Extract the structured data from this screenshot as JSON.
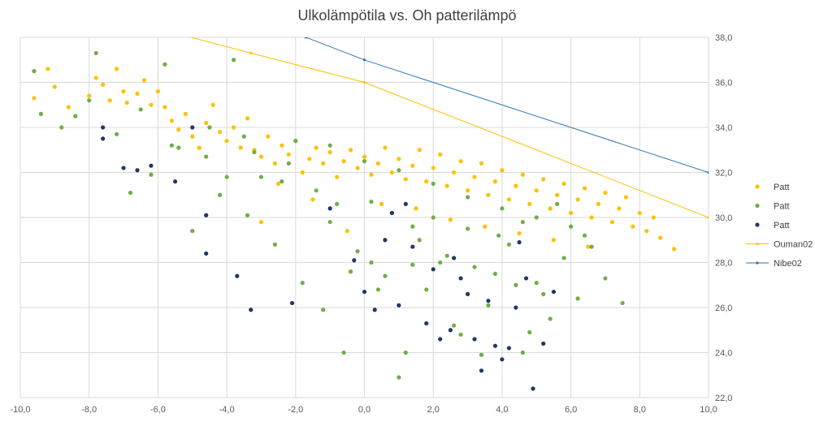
{
  "chart_data": {
    "type": "scatter",
    "title": "Ulkolämpötila vs. Oh patterilämpö",
    "xlim": [
      -10,
      10
    ],
    "ylim": [
      22,
      38
    ],
    "x_ticks": [
      "-10,0",
      "-8,0",
      "-6,0",
      "-4,0",
      "-2,0",
      "0,0",
      "2,0",
      "4,0",
      "6,0",
      "8,0",
      "10,0"
    ],
    "y_ticks": [
      "22,0",
      "24,0",
      "26,0",
      "28,0",
      "30,0",
      "32,0",
      "34,0",
      "36,0",
      "38,0"
    ],
    "grid": true,
    "legend_position": "right",
    "series": [
      {
        "name": "Patt",
        "kind": "scatter",
        "color": "#ffc000",
        "points": [
          [
            -9.6,
            35.3
          ],
          [
            -9.2,
            36.6
          ],
          [
            -9.0,
            35.8
          ],
          [
            -8.6,
            34.9
          ],
          [
            -8.0,
            35.4
          ],
          [
            -7.8,
            36.2
          ],
          [
            -7.6,
            35.9
          ],
          [
            -7.4,
            35.2
          ],
          [
            -7.2,
            36.6
          ],
          [
            -7.0,
            35.6
          ],
          [
            -6.9,
            35.1
          ],
          [
            -6.6,
            35.5
          ],
          [
            -6.4,
            36.1
          ],
          [
            -6.2,
            35.0
          ],
          [
            -6.0,
            35.6
          ],
          [
            -5.8,
            34.9
          ],
          [
            -5.6,
            34.3
          ],
          [
            -5.4,
            33.9
          ],
          [
            -5.2,
            34.6
          ],
          [
            -5.0,
            33.6
          ],
          [
            -4.8,
            33.1
          ],
          [
            -4.6,
            34.2
          ],
          [
            -4.4,
            35.0
          ],
          [
            -4.2,
            33.8
          ],
          [
            -4.0,
            33.4
          ],
          [
            -3.8,
            34.0
          ],
          [
            -3.6,
            33.1
          ],
          [
            -3.4,
            34.4
          ],
          [
            -3.2,
            33.0
          ],
          [
            -3.0,
            32.7
          ],
          [
            -2.8,
            33.6
          ],
          [
            -2.6,
            32.4
          ],
          [
            -2.4,
            33.2
          ],
          [
            -2.2,
            32.8
          ],
          [
            -2.0,
            33.4
          ],
          [
            -1.8,
            32.0
          ],
          [
            -1.6,
            32.6
          ],
          [
            -1.4,
            33.1
          ],
          [
            -1.2,
            32.4
          ],
          [
            -1.0,
            32.9
          ],
          [
            -0.8,
            31.8
          ],
          [
            -0.6,
            32.5
          ],
          [
            -0.4,
            33.0
          ],
          [
            -0.2,
            32.2
          ],
          [
            0.0,
            32.7
          ],
          [
            0.2,
            31.9
          ],
          [
            0.4,
            32.4
          ],
          [
            0.6,
            33.1
          ],
          [
            0.8,
            32.0
          ],
          [
            1.0,
            32.6
          ],
          [
            1.2,
            31.7
          ],
          [
            1.4,
            32.3
          ],
          [
            1.6,
            33.0
          ],
          [
            1.8,
            31.6
          ],
          [
            2.0,
            32.2
          ],
          [
            2.2,
            32.8
          ],
          [
            2.4,
            31.4
          ],
          [
            2.6,
            32.0
          ],
          [
            2.8,
            32.5
          ],
          [
            3.0,
            31.2
          ],
          [
            3.2,
            31.8
          ],
          [
            3.4,
            32.4
          ],
          [
            3.6,
            31.0
          ],
          [
            3.8,
            31.6
          ],
          [
            4.0,
            32.1
          ],
          [
            4.2,
            30.8
          ],
          [
            4.4,
            31.4
          ],
          [
            4.6,
            31.9
          ],
          [
            4.8,
            30.6
          ],
          [
            5.0,
            31.2
          ],
          [
            5.2,
            31.7
          ],
          [
            5.4,
            30.4
          ],
          [
            5.6,
            31.0
          ],
          [
            5.8,
            31.5
          ],
          [
            6.0,
            30.2
          ],
          [
            6.2,
            30.8
          ],
          [
            6.4,
            31.3
          ],
          [
            6.6,
            30.0
          ],
          [
            6.8,
            30.6
          ],
          [
            7.0,
            31.1
          ],
          [
            7.2,
            29.8
          ],
          [
            7.4,
            30.4
          ],
          [
            7.6,
            30.9
          ],
          [
            7.8,
            29.6
          ],
          [
            8.0,
            30.2
          ],
          [
            8.2,
            29.4
          ],
          [
            8.4,
            30.0
          ],
          [
            8.6,
            29.1
          ],
          [
            9.0,
            28.6
          ],
          [
            -0.5,
            29.4
          ],
          [
            -1.5,
            30.8
          ],
          [
            -3.0,
            29.8
          ],
          [
            -2.5,
            31.5
          ],
          [
            0.5,
            30.6
          ],
          [
            1.5,
            30.4
          ],
          [
            2.5,
            29.9
          ],
          [
            3.5,
            29.6
          ],
          [
            4.5,
            29.3
          ],
          [
            5.5,
            29.0
          ],
          [
            6.5,
            28.7
          ]
        ]
      },
      {
        "name": "Patt",
        "kind": "scatter",
        "color": "#70ad47",
        "points": [
          [
            -9.6,
            36.5
          ],
          [
            -9.4,
            34.6
          ],
          [
            -8.8,
            34.0
          ],
          [
            -8.4,
            34.5
          ],
          [
            -7.8,
            37.3
          ],
          [
            -7.2,
            33.7
          ],
          [
            -6.8,
            31.1
          ],
          [
            -6.2,
            31.9
          ],
          [
            -5.8,
            36.8
          ],
          [
            -5.4,
            33.1
          ],
          [
            -5.0,
            29.4
          ],
          [
            -4.6,
            32.7
          ],
          [
            -4.2,
            31.0
          ],
          [
            -3.8,
            37.0
          ],
          [
            -3.4,
            30.1
          ],
          [
            -3.0,
            31.8
          ],
          [
            -2.6,
            28.8
          ],
          [
            -2.2,
            32.4
          ],
          [
            -1.8,
            27.1
          ],
          [
            -1.4,
            31.2
          ],
          [
            -1.0,
            29.8
          ],
          [
            -0.6,
            24.0
          ],
          [
            -0.2,
            28.5
          ],
          [
            0.2,
            30.7
          ],
          [
            0.6,
            27.4
          ],
          [
            1.0,
            22.9
          ],
          [
            1.2,
            24.0
          ],
          [
            1.4,
            29.6
          ],
          [
            1.8,
            26.8
          ],
          [
            2.2,
            28.0
          ],
          [
            2.6,
            25.2
          ],
          [
            3.0,
            29.5
          ],
          [
            3.4,
            23.9
          ],
          [
            3.8,
            27.5
          ],
          [
            4.2,
            28.8
          ],
          [
            4.6,
            24.0
          ],
          [
            5.0,
            27.1
          ],
          [
            5.4,
            25.5
          ],
          [
            5.8,
            28.2
          ],
          [
            6.2,
            26.4
          ],
          [
            6.6,
            28.7
          ],
          [
            7.0,
            27.3
          ],
          [
            7.5,
            26.2
          ],
          [
            -2.0,
            33.4
          ],
          [
            -1.0,
            33.2
          ],
          [
            0.0,
            32.5
          ],
          [
            1.0,
            32.1
          ],
          [
            2.0,
            31.5
          ],
          [
            3.0,
            30.9
          ],
          [
            4.0,
            30.4
          ],
          [
            5.0,
            30.0
          ],
          [
            6.0,
            29.6
          ],
          [
            -3.5,
            33.6
          ],
          [
            -4.5,
            34.0
          ],
          [
            -6.5,
            34.8
          ],
          [
            -8.0,
            35.2
          ],
          [
            0.8,
            30.2
          ],
          [
            1.6,
            29.0
          ],
          [
            2.4,
            28.3
          ],
          [
            3.2,
            27.8
          ],
          [
            4.4,
            27.0
          ],
          [
            5.2,
            26.6
          ],
          [
            3.6,
            26.1
          ],
          [
            2.8,
            24.8
          ],
          [
            4.8,
            24.9
          ],
          [
            0.4,
            26.8
          ],
          [
            -0.4,
            27.6
          ],
          [
            -1.2,
            25.9
          ],
          [
            1.4,
            27.9
          ],
          [
            3.9,
            29.2
          ],
          [
            4.6,
            29.8
          ],
          [
            5.6,
            30.6
          ],
          [
            6.4,
            29.2
          ],
          [
            2.0,
            30.0
          ],
          [
            -0.8,
            30.6
          ],
          [
            -2.4,
            31.6
          ],
          [
            -3.2,
            32.9
          ],
          [
            -5.6,
            33.2
          ],
          [
            -4.0,
            31.8
          ],
          [
            0.2,
            28.0
          ]
        ]
      },
      {
        "name": "Patt",
        "kind": "scatter",
        "color": "#203864",
        "points": [
          [
            -7.6,
            34.0
          ],
          [
            -7.0,
            32.2
          ],
          [
            -6.6,
            32.1
          ],
          [
            -6.2,
            32.3
          ],
          [
            -5.5,
            31.6
          ],
          [
            -5.0,
            34.0
          ],
          [
            -4.6,
            30.1
          ],
          [
            -4.6,
            28.4
          ],
          [
            -3.7,
            27.4
          ],
          [
            -3.3,
            25.9
          ],
          [
            -2.1,
            26.2
          ],
          [
            -1.0,
            30.4
          ],
          [
            -0.3,
            28.1
          ],
          [
            0.0,
            26.7
          ],
          [
            0.3,
            25.9
          ],
          [
            0.6,
            29.0
          ],
          [
            1.0,
            26.1
          ],
          [
            1.4,
            28.7
          ],
          [
            1.8,
            25.3
          ],
          [
            2.2,
            24.6
          ],
          [
            2.5,
            25.0
          ],
          [
            2.8,
            27.3
          ],
          [
            3.2,
            24.6
          ],
          [
            3.6,
            26.3
          ],
          [
            3.8,
            24.3
          ],
          [
            4.0,
            23.7
          ],
          [
            4.2,
            24.2
          ],
          [
            4.4,
            26.0
          ],
          [
            4.7,
            27.3
          ],
          [
            4.9,
            22.4
          ],
          [
            5.2,
            24.4
          ],
          [
            5.5,
            26.7
          ],
          [
            3.4,
            23.2
          ],
          [
            1.2,
            30.6
          ],
          [
            2.0,
            27.7
          ],
          [
            2.6,
            28.2
          ],
          [
            3.0,
            26.6
          ],
          [
            4.5,
            28.9
          ],
          [
            -7.6,
            33.5
          ],
          [
            0.8,
            30.2
          ]
        ]
      },
      {
        "name": "Ouman02",
        "kind": "line",
        "color": "#ffc000",
        "points": [
          [
            -10,
            40
          ],
          [
            -3.3,
            37.3
          ],
          [
            0,
            36.0
          ],
          [
            10,
            30.0
          ]
        ]
      },
      {
        "name": "Nibe02",
        "kind": "line",
        "color": "#2e75b6",
        "points": [
          [
            -10,
            42
          ],
          [
            -1.7,
            38.0
          ],
          [
            0,
            37.0
          ],
          [
            10,
            32.0
          ]
        ]
      }
    ]
  }
}
